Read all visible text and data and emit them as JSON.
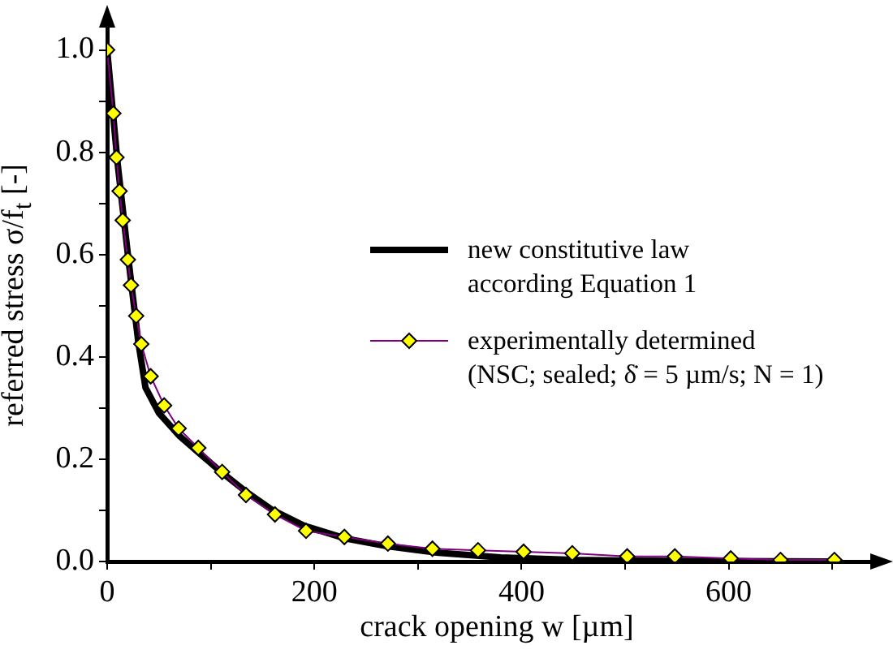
{
  "chart_data": {
    "type": "line",
    "xlabel": "crack opening w [µm]",
    "ylabel": "referred stress σ/f$_{t}$ [-]",
    "legend": "right",
    "xlim": [
      0,
      750
    ],
    "xticks": [
      0,
      {
        "value": 100,
        "label": null
      },
      200,
      {
        "value": 300,
        "label": null
      },
      400,
      {
        "value": 500,
        "label": null
      },
      600,
      {
        "value": 700,
        "label": null
      }
    ],
    "ylim": [
      0,
      1.05
    ],
    "yticks": [
      {
        "value": 0,
        "label": "0.0"
      },
      {
        "value": 0.1,
        "label": null
      },
      {
        "value": 0.2,
        "label": "0.2"
      },
      {
        "value": 0.3,
        "label": null
      },
      {
        "value": 0.4,
        "label": "0.4"
      },
      {
        "value": 0.5,
        "label": null
      },
      {
        "value": 0.6,
        "label": "0.6"
      },
      {
        "value": 0.7,
        "label": null
      },
      {
        "value": 0.8,
        "label": "0.8"
      },
      {
        "value": 0.9,
        "label": null
      },
      {
        "value": 1,
        "label": "1.0"
      }
    ],
    "series": [
      {
        "name": "new constitutive law according Equation 1",
        "color": "#000000",
        "marker": "none",
        "x": [
          0,
          10,
          20,
          30,
          37,
          50,
          70,
          90,
          110,
          135,
          160,
          190,
          230,
          270,
          320,
          380,
          450,
          550,
          700
        ],
        "values": [
          1,
          0.78,
          0.6,
          0.43,
          0.34,
          0.29,
          0.245,
          0.21,
          0.175,
          0.135,
          0.1,
          0.07,
          0.045,
          0.03,
          0.017,
          0.008,
          0.003,
          0.001,
          0
        ]
      },
      {
        "name": "experimentally determined (NSC; sealed; δ̇ = 5 µm/s; N = 1)",
        "color": "#800080",
        "marker": "diamond",
        "x": [
          0,
          6,
          9,
          12,
          15,
          20,
          23,
          28,
          33,
          42,
          55,
          69,
          88,
          111,
          134,
          162,
          192,
          229,
          271,
          314,
          358,
          402,
          449,
          502,
          548,
          602,
          650,
          702
        ],
        "values": [
          1,
          0.876,
          0.79,
          0.724,
          0.667,
          0.59,
          0.54,
          0.48,
          0.425,
          0.362,
          0.305,
          0.26,
          0.222,
          0.175,
          0.13,
          0.092,
          0.06,
          0.048,
          0.035,
          0.025,
          0.022,
          0.019,
          0.016,
          0.01,
          0.01,
          0.006,
          0.003,
          0.003
        ]
      }
    ]
  }
}
